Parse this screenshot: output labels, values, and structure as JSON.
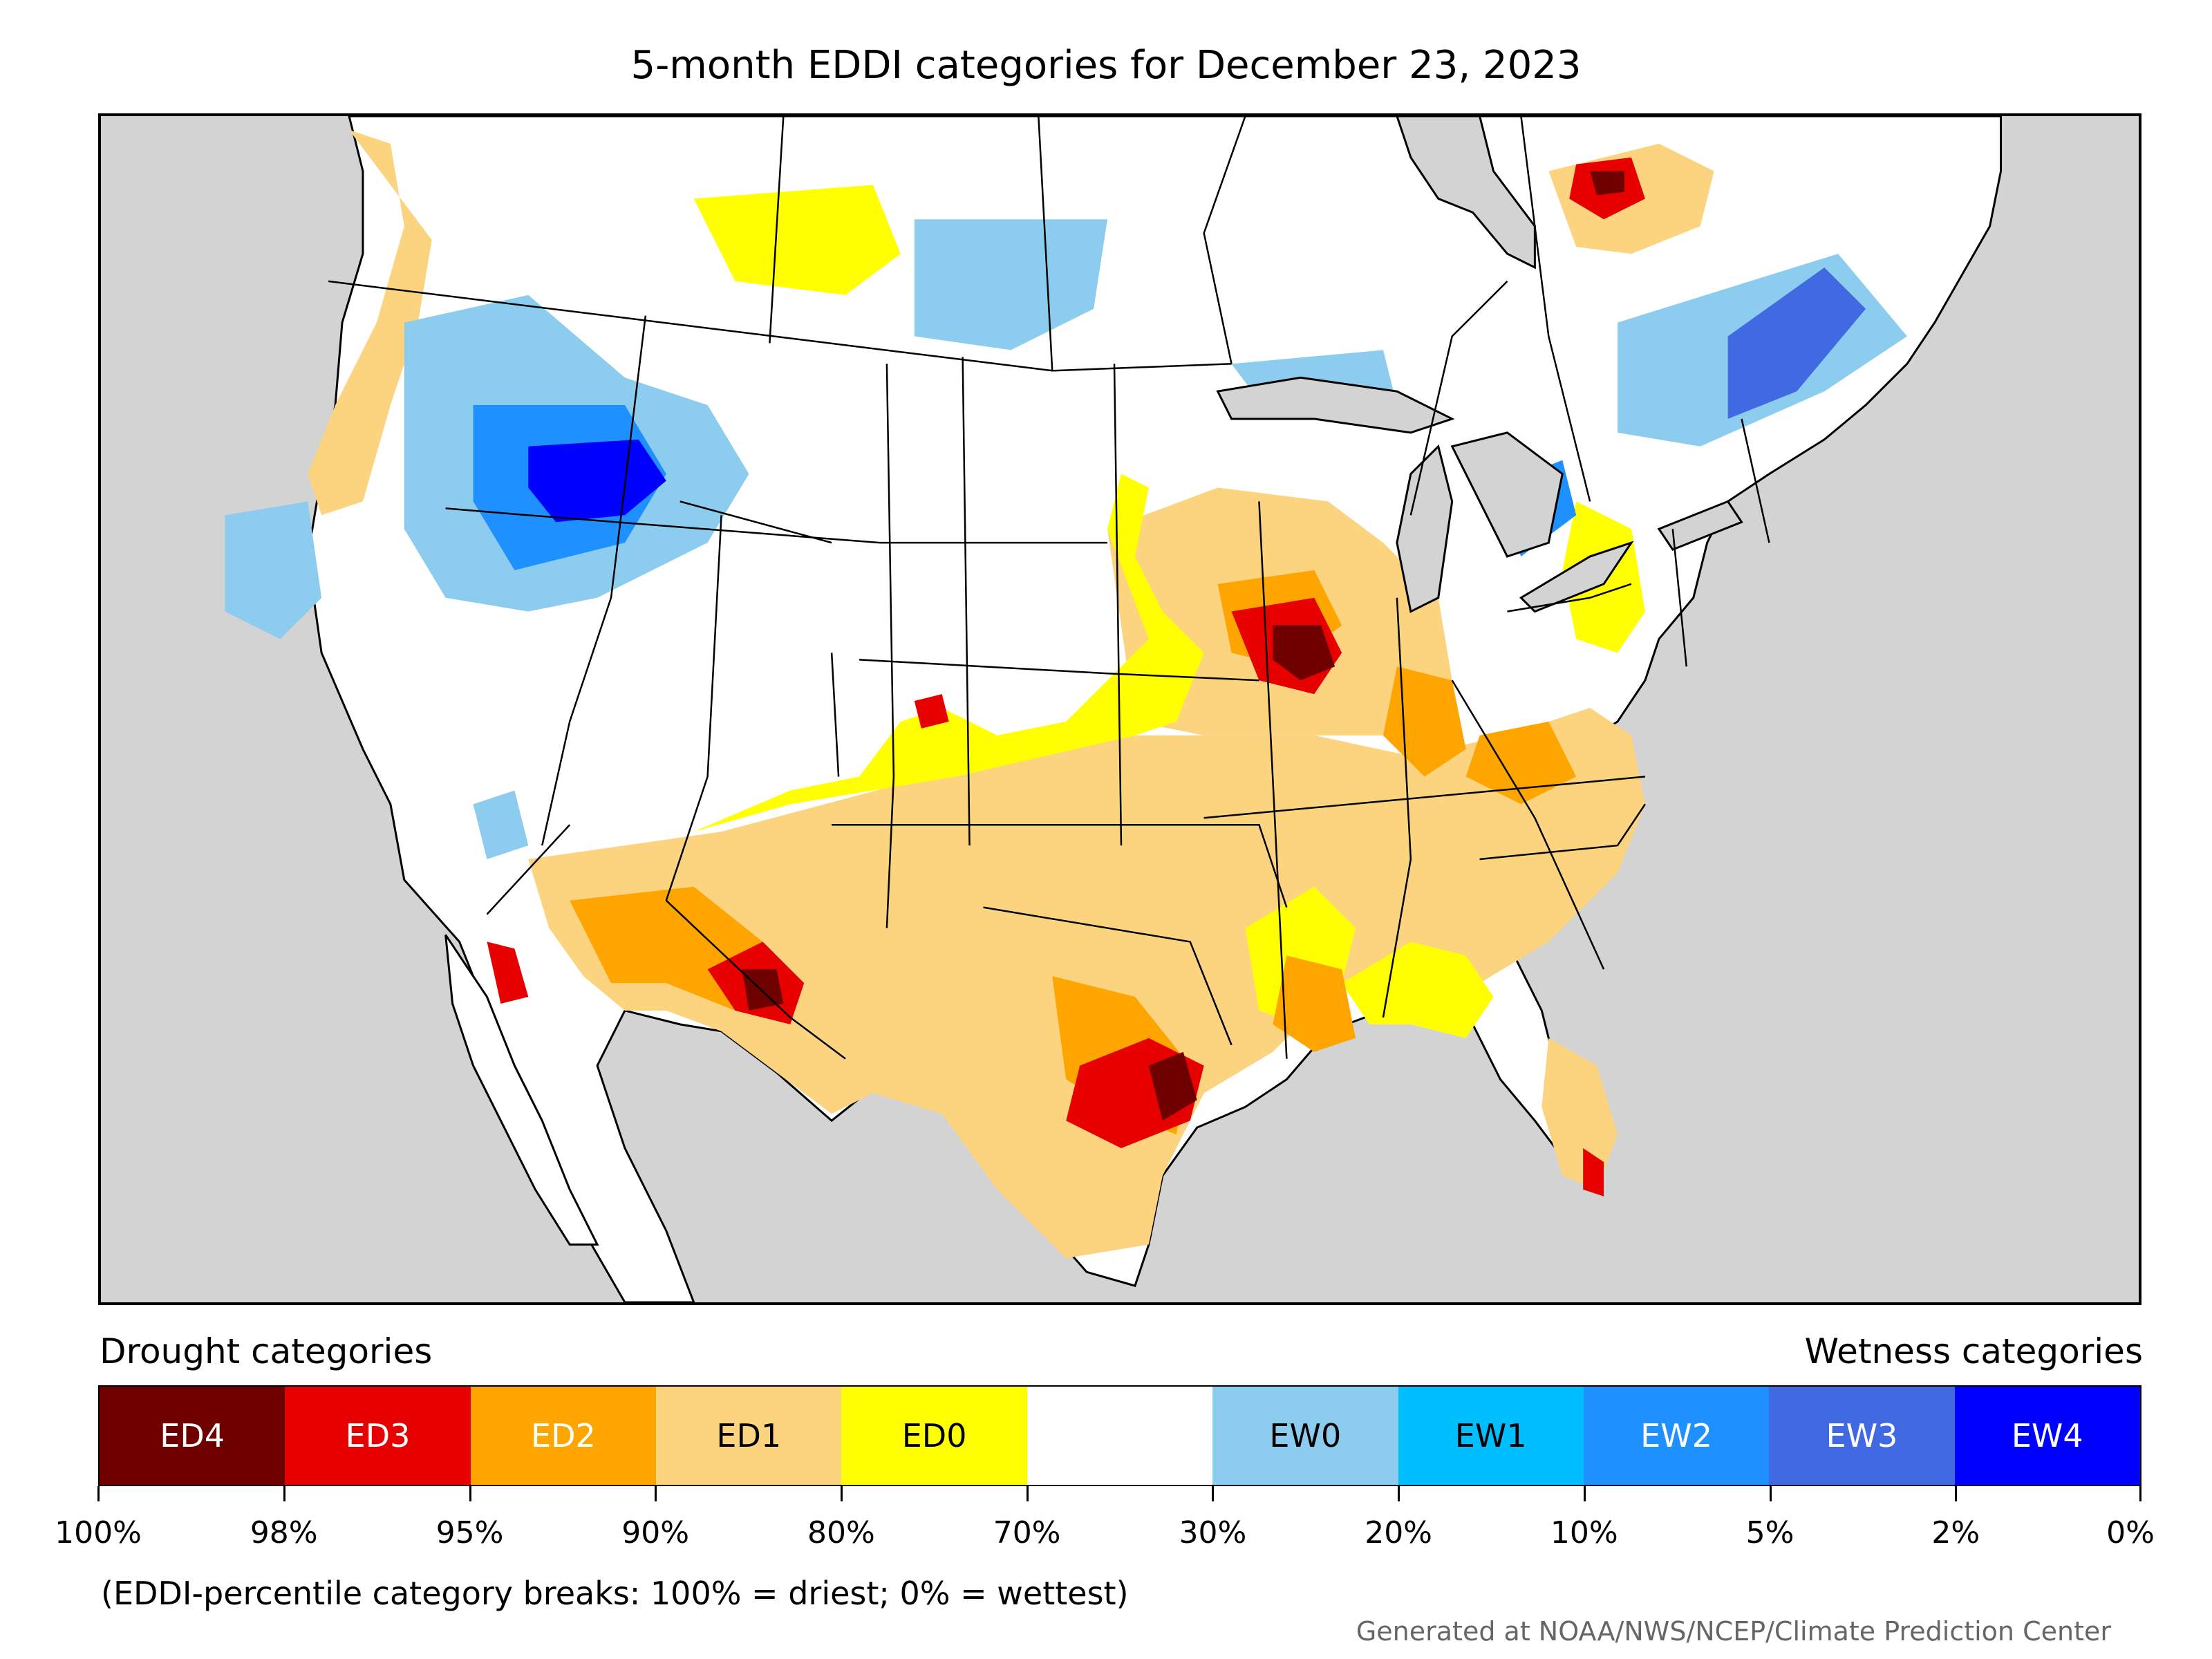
{
  "title": "5-month EDDI categories for December 23, 2023",
  "legend": {
    "drought_label": "Drought categories",
    "wetness_label": "Wetness categories",
    "categories": [
      {
        "code": "ED4",
        "color": "#6e0000",
        "text_color": "#ffffff"
      },
      {
        "code": "ED3",
        "color": "#e60000",
        "text_color": "#ffffff"
      },
      {
        "code": "ED2",
        "color": "#ffa500",
        "text_color": "#ffffff"
      },
      {
        "code": "ED1",
        "color": "#fcd37f",
        "text_color": "#000000"
      },
      {
        "code": "ED0",
        "color": "#ffff00",
        "text_color": "#000000"
      },
      {
        "code": "",
        "color": "#ffffff",
        "text_color": "#000000"
      },
      {
        "code": "EW0",
        "color": "#8ccdef",
        "text_color": "#000000"
      },
      {
        "code": "EW1",
        "color": "#00bfff",
        "text_color": "#000000"
      },
      {
        "code": "EW2",
        "color": "#1e90ff",
        "text_color": "#ffffff"
      },
      {
        "code": "EW3",
        "color": "#4169e1",
        "text_color": "#ffffff"
      },
      {
        "code": "EW4",
        "color": "#0000ff",
        "text_color": "#ffffff"
      }
    ],
    "breaks": [
      "100%",
      "98%",
      "95%",
      "90%",
      "80%",
      "70%",
      "30%",
      "20%",
      "10%",
      "5%",
      "2%",
      "0%"
    ]
  },
  "note": "(EDDI-percentile category breaks: 100% = driest; 0% = wettest)",
  "credit": "Generated at NOAA/NWS/NCEP/Climate Prediction Center",
  "colors": {
    "water": "#d3d3d3",
    "land": "#ffffff",
    "border": "#000000"
  }
}
